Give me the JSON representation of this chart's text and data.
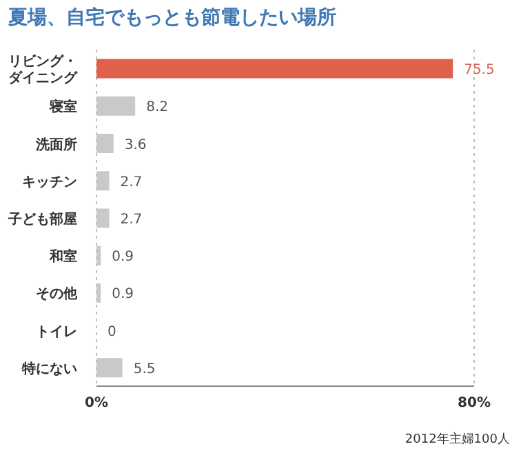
{
  "chart_data": {
    "type": "bar",
    "orientation": "horizontal",
    "title": "夏場、自宅でもっとも節電したい場所",
    "categories": [
      "リビング・ダイニング",
      "寝室",
      "洗面所",
      "キッチン",
      "子ども部屋",
      "和室",
      "その他",
      "トイレ",
      "特にない"
    ],
    "values": [
      75.5,
      8.2,
      3.6,
      2.7,
      2.7,
      0.9,
      0.9,
      0,
      5.5
    ],
    "colors": [
      "#e0604c",
      "#c9c9c9",
      "#c9c9c9",
      "#c9c9c9",
      "#c9c9c9",
      "#c9c9c9",
      "#c9c9c9",
      "#c9c9c9",
      "#c9c9c9"
    ],
    "xlim": [
      0,
      80
    ],
    "xticks": [
      {
        "value": 0,
        "label": "0%"
      },
      {
        "value": 80,
        "label": "80%"
      }
    ],
    "grid": "x",
    "data_labels": true,
    "legend": false,
    "annotations": [
      "2012年主婦100人"
    ]
  }
}
